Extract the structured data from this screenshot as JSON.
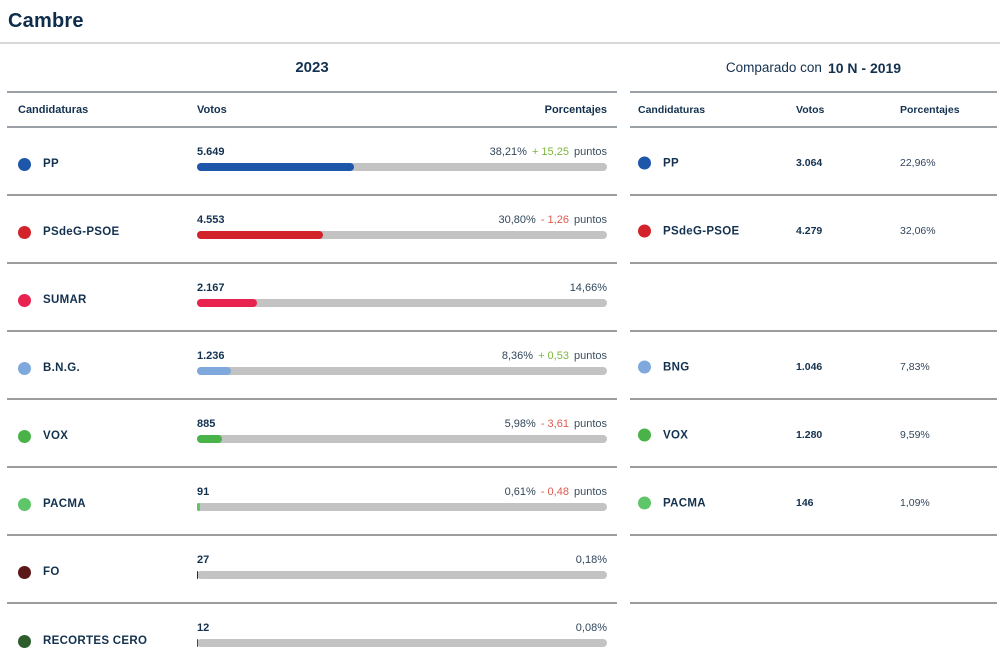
{
  "page": {
    "title": "Cambre"
  },
  "left_panel": {
    "title": "2023",
    "columns": {
      "candidaturas": "Candidaturas",
      "votos": "Votos",
      "porcentajes": "Porcentajes"
    },
    "puntos_label": "puntos",
    "bar_track_color": "#c3c3c3",
    "delta_up_color": "#7cb73e",
    "delta_down_color": "#e05a50",
    "rows": [
      {
        "party": "PP",
        "color": "#1e56aa",
        "votes": "5.649",
        "pct": "38,21%",
        "pct_value": 38.21,
        "delta": "+ 15,25",
        "delta_dir": "up"
      },
      {
        "party": "PSdeG-PSOE",
        "color": "#d2232a",
        "votes": "4.553",
        "pct": "30,80%",
        "pct_value": 30.8,
        "delta": "- 1,26",
        "delta_dir": "down"
      },
      {
        "party": "SUMAR",
        "color": "#e9234f",
        "votes": "2.167",
        "pct": "14,66%",
        "pct_value": 14.66,
        "delta": null,
        "delta_dir": null
      },
      {
        "party": "B.N.G.",
        "color": "#7fa9dc",
        "votes": "1.236",
        "pct": "8,36%",
        "pct_value": 8.36,
        "delta": "+ 0,53",
        "delta_dir": "up"
      },
      {
        "party": "VOX",
        "color": "#49b248",
        "votes": "885",
        "pct": "5,98%",
        "pct_value": 5.98,
        "delta": "- 3,61",
        "delta_dir": "down"
      },
      {
        "party": "PACMA",
        "color": "#5ec568",
        "votes": "91",
        "pct": "0,61%",
        "pct_value": 0.61,
        "delta": "- 0,48",
        "delta_dir": "down"
      },
      {
        "party": "FO",
        "color": "#5c1717",
        "votes": "27",
        "pct": "0,18%",
        "pct_value": 0.18,
        "delta": null,
        "delta_dir": null
      },
      {
        "party": "RECORTES CERO",
        "color": "#2d5e2b",
        "votes": "12",
        "pct": "0,08%",
        "pct_value": 0.08,
        "delta": null,
        "delta_dir": null
      }
    ]
  },
  "right_panel": {
    "title_prefix": "Comparado con",
    "title_bold": "10 N - 2019",
    "columns": {
      "candidaturas": "Candidaturas",
      "votos": "Votos",
      "porcentajes": "Porcentajes"
    },
    "rows": [
      {
        "party": "PP",
        "color": "#1e56aa",
        "votes": "3.064",
        "pct": "22,96%"
      },
      {
        "party": "PSdeG-PSOE",
        "color": "#d2232a",
        "votes": "4.279",
        "pct": "32,06%"
      },
      {
        "empty": true
      },
      {
        "party": "BNG",
        "color": "#7fa9dc",
        "votes": "1.046",
        "pct": "7,83%"
      },
      {
        "party": "VOX",
        "color": "#49b248",
        "votes": "1.280",
        "pct": "9,59%"
      },
      {
        "party": "PACMA",
        "color": "#5ec568",
        "votes": "146",
        "pct": "1,09%"
      },
      {
        "empty": true
      },
      {
        "empty": true
      }
    ]
  },
  "chart_data": {
    "type": "bar",
    "title": "Cambre",
    "categories": [
      "PP",
      "PSdeG-PSOE",
      "SUMAR",
      "B.N.G.",
      "VOX",
      "PACMA",
      "FO",
      "RECORTES CERO"
    ],
    "series": [
      {
        "name": "2023 votos",
        "values": [
          5649,
          4553,
          2167,
          1236,
          885,
          91,
          27,
          12
        ]
      },
      {
        "name": "2023 porcentaje",
        "values": [
          38.21,
          30.8,
          14.66,
          8.36,
          5.98,
          0.61,
          0.18,
          0.08
        ]
      },
      {
        "name": "2023 diferencia (puntos)",
        "values": [
          15.25,
          -1.26,
          null,
          0.53,
          -3.61,
          -0.48,
          null,
          null
        ]
      },
      {
        "name": "10 N - 2019 votos",
        "values": [
          3064,
          4279,
          null,
          1046,
          1280,
          146,
          null,
          null
        ]
      },
      {
        "name": "10 N - 2019 porcentaje",
        "values": [
          22.96,
          32.06,
          null,
          7.83,
          9.59,
          1.09,
          null,
          null
        ]
      }
    ],
    "xlabel": "Candidaturas",
    "ylabel": "Votos / Porcentajes",
    "ylim": [
      0,
      100
    ],
    "grid": false,
    "legend_position": "none",
    "bar_orientation": "horizontal"
  }
}
